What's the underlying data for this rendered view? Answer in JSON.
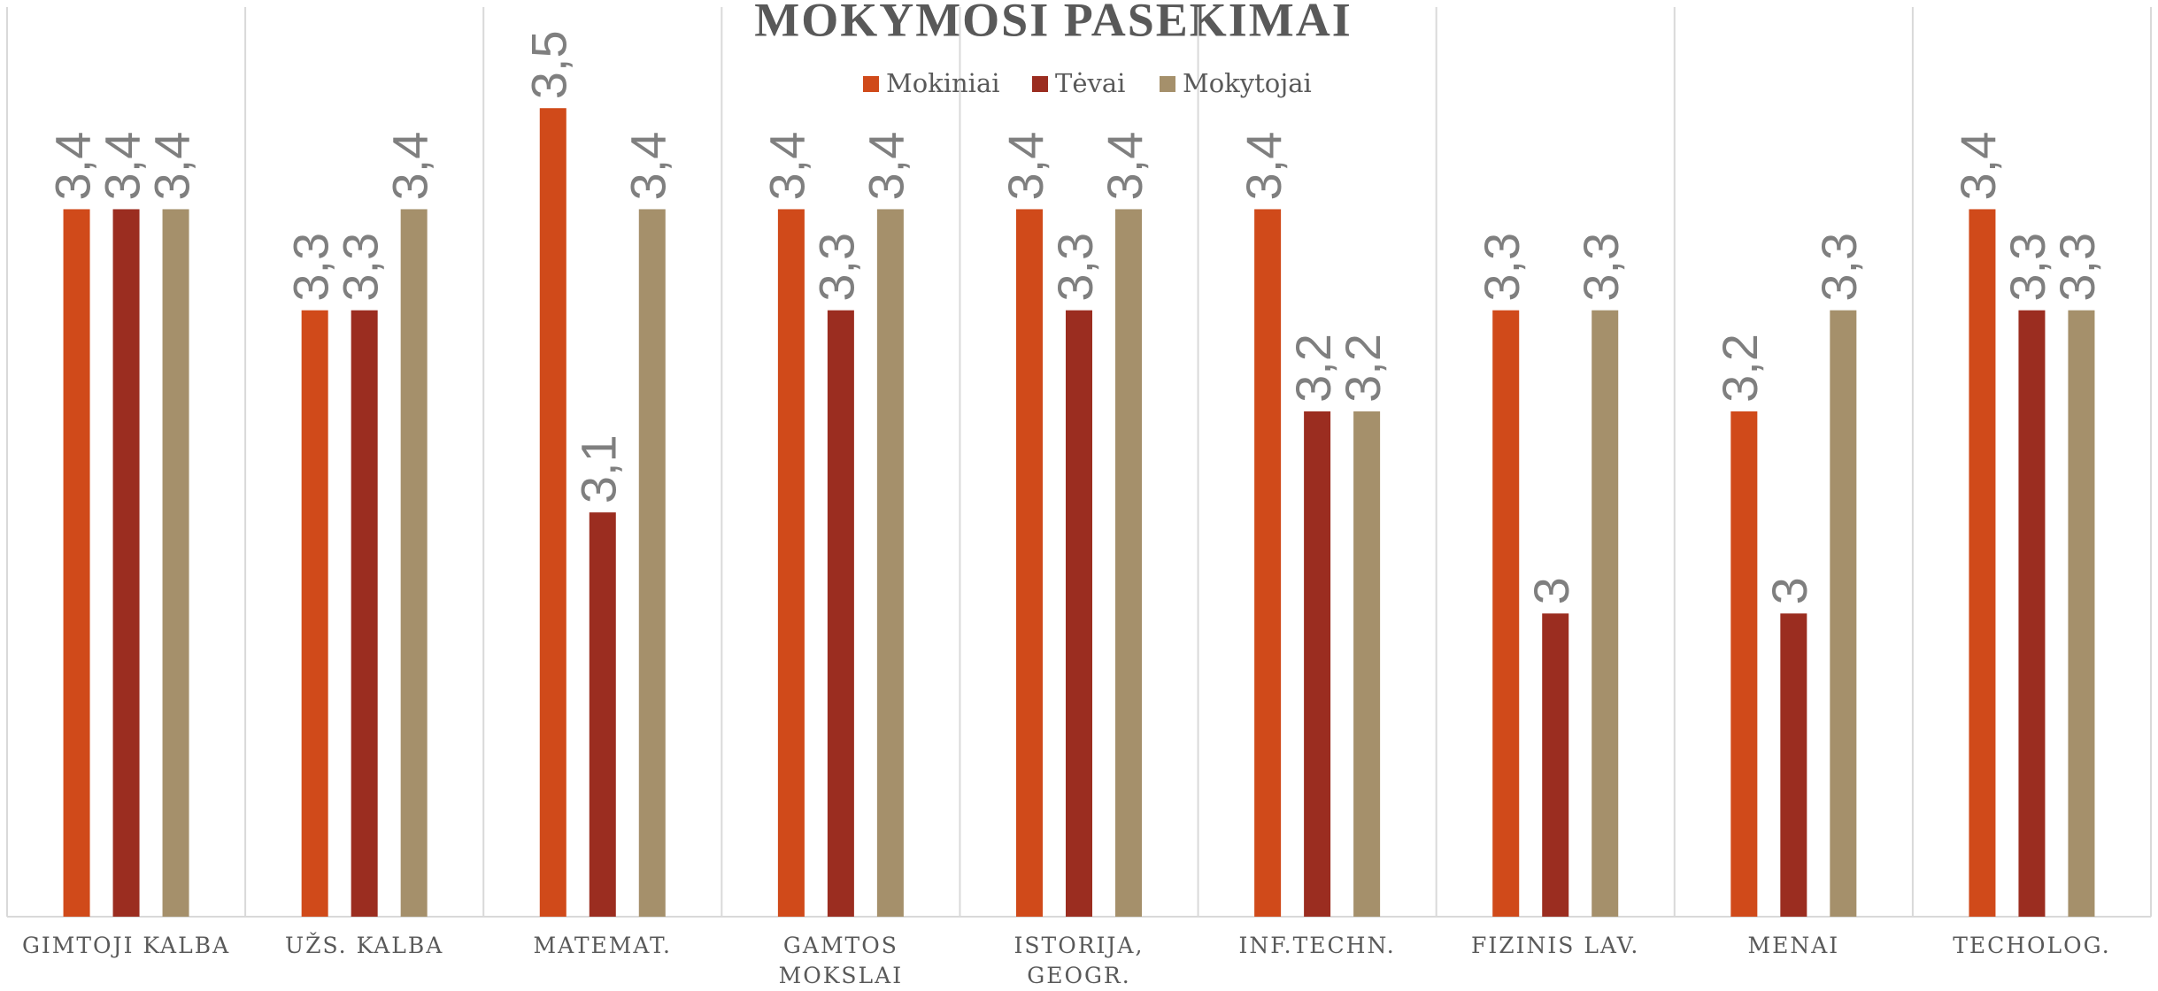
{
  "chart_data": {
    "type": "bar",
    "title": "MOKYMOSI PASEKIMAI",
    "categories": [
      "GIMTOJI KALBA",
      "UŽS. KALBA",
      "MATEMAT.",
      "GAMTOS\nMOKSLAI",
      "ISTORIJA,\nGEOGR.",
      "INF.TECHN.",
      "FIZINIS LAV.",
      "MENAI",
      "TECHOLOG."
    ],
    "series": [
      {
        "name": "Mokiniai",
        "color": "#d04a1a",
        "values": [
          3.4,
          3.3,
          3.5,
          3.4,
          3.4,
          3.4,
          3.3,
          3.2,
          3.4
        ],
        "value_labels": [
          "3,4",
          "3,3",
          "3,5",
          "3,4",
          "3,4",
          "3,4",
          "3,3",
          "3,2",
          "3,4"
        ]
      },
      {
        "name": "Tėvai",
        "color": "#9b2d20",
        "values": [
          3.4,
          3.3,
          3.1,
          3.3,
          3.3,
          3.2,
          3,
          3,
          3.3
        ],
        "value_labels": [
          "3,4",
          "3,3",
          "3,1",
          "3,3",
          "3,3",
          "3,2",
          "3",
          "3",
          "3,3"
        ]
      },
      {
        "name": "Mokytojai",
        "color": "#a5906b",
        "values": [
          3.4,
          3.4,
          3.4,
          3.4,
          3.4,
          3.2,
          3.3,
          3.3,
          3.3
        ],
        "value_labels": [
          "3,4",
          "3,4",
          "3,4",
          "3,4",
          "3,4",
          "3,2",
          "3,3",
          "3,3",
          "3,3"
        ]
      }
    ],
    "ylim": [
      2.7,
      3.6
    ],
    "legend": "top"
  }
}
